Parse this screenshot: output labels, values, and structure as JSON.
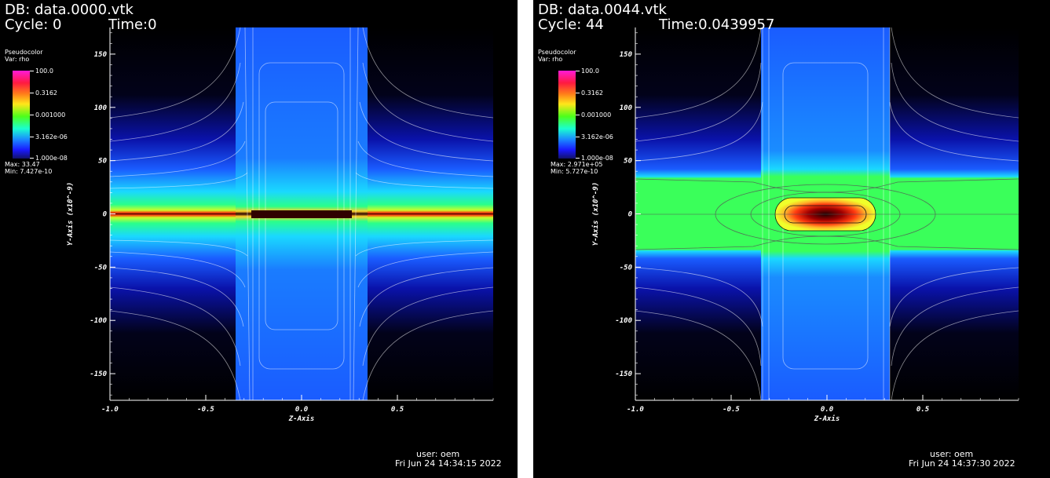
{
  "chart_data": [
    {
      "type": "heatmap",
      "db": "DB: data.0000.vtk",
      "cycle": "Cycle: 0",
      "time": "Time:0",
      "legend": {
        "plot_type": "Pseudocolor",
        "var": "Var: rho",
        "labels": [
          "100.0",
          "0.3162",
          "0.001000",
          "3.162e-06",
          "1.000e-08"
        ],
        "max": "Max: 33.47",
        "min": "Min: 7.427e-10",
        "scale": "log"
      },
      "xlabel": "Z-Axis",
      "ylabel": "Y-Axis (x10^-9)",
      "x_ticks": [
        "-1.0",
        "-0.5",
        "0.0",
        "0.5"
      ],
      "y_ticks": [
        "150",
        "100",
        "50",
        "0",
        "-50",
        "-100",
        "-150"
      ],
      "xlim": [
        -1.0,
        1.0
      ],
      "ylim": [
        -175,
        175
      ],
      "user": "user: oem",
      "date": "Fri Jun 24 14:34:15 2022"
    },
    {
      "type": "heatmap",
      "db": "DB: data.0044.vtk",
      "cycle": "Cycle: 44",
      "time": "Time:0.0439957",
      "legend": {
        "plot_type": "Pseudocolor",
        "var": "Var: rho",
        "labels": [
          "100.0",
          "0.3162",
          "0.001000",
          "3.162e-06",
          "1.000e-08"
        ],
        "max": "Max: 2.971e+05",
        "min": "Min: 5.727e-10",
        "scale": "log"
      },
      "xlabel": "Z-Axis",
      "ylabel": "Y-Axis (x10^-9)",
      "x_ticks": [
        "-1.0",
        "-0.5",
        "0.0",
        "0.5"
      ],
      "y_ticks": [
        "150",
        "100",
        "50",
        "0",
        "-50",
        "-100",
        "-150"
      ],
      "xlim": [
        -1.0,
        1.0
      ],
      "ylim": [
        -175,
        175
      ],
      "user": "user: oem",
      "date": "Fri Jun 24 14:37:30 2022"
    }
  ]
}
